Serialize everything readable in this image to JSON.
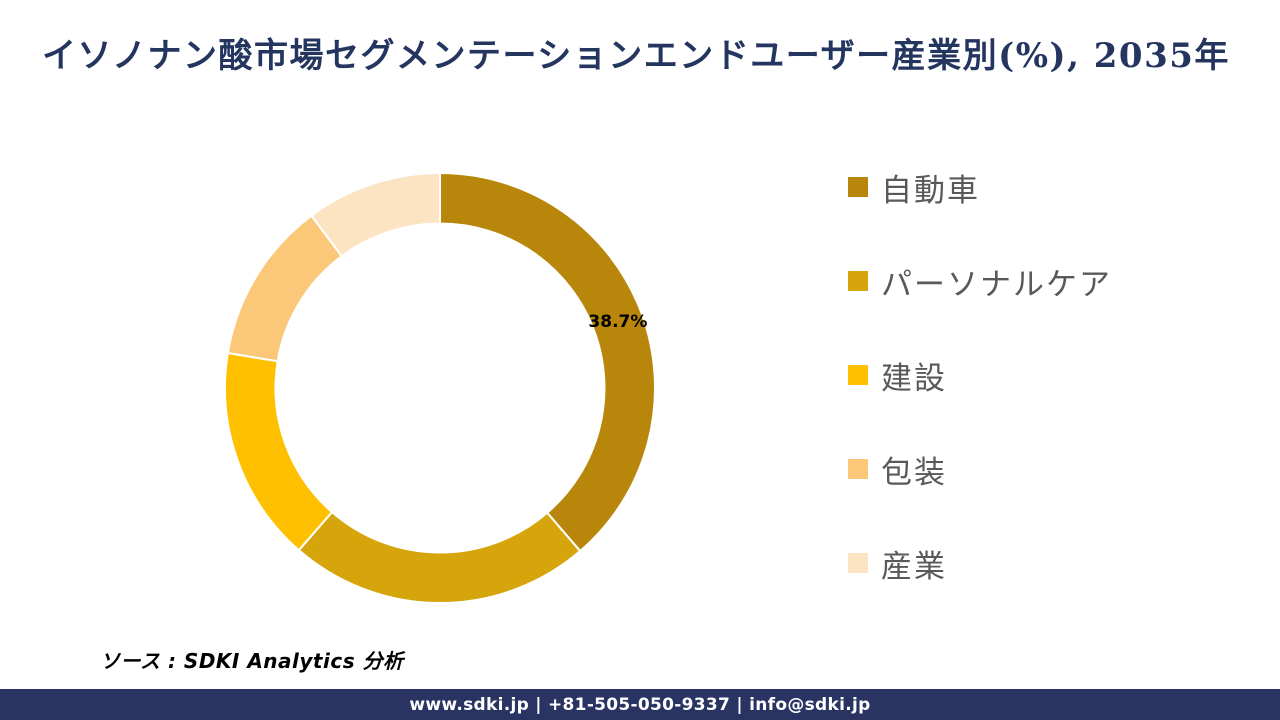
{
  "title": "イソノナン酸市場セグメンテーションエンドユーザー産業別(%), 2035年",
  "source_note": "ソース : SDKI Analytics 分析",
  "footer": {
    "text": "www.sdki.jp | +81-505-050-9337 | info@sdki.jp",
    "background": "#293462"
  },
  "colors": {
    "title": "#24355F",
    "legend_text": "#595959",
    "data_label": "#000000",
    "slice_gap_stroke": "#ffffff"
  },
  "chart_data": {
    "type": "pie",
    "subtype": "donut",
    "title": "イソノナン酸市場セグメンテーションエンドユーザー産業別(%), 2035年",
    "unit": "%",
    "start_angle_deg": 0,
    "direction": "clockwise",
    "inner_radius_ratio": 0.765,
    "legend_position": "right",
    "slices": [
      {
        "label": "自動車",
        "value": 38.7,
        "color": "#B8860B",
        "data_label": "38.7%",
        "label_visible": true
      },
      {
        "label": "パーソナルケア",
        "value": 22.7,
        "color": "#D6A40B",
        "data_label": "",
        "label_visible": false
      },
      {
        "label": "建設",
        "value": 16.2,
        "color": "#FFC000",
        "data_label": "",
        "label_visible": false
      },
      {
        "label": "包装",
        "value": 12.2,
        "color": "#FAC878",
        "data_label": "",
        "label_visible": false
      },
      {
        "label": "産業",
        "value": 10.2,
        "color": "#FCE3C2",
        "data_label": "",
        "label_visible": false
      }
    ]
  }
}
